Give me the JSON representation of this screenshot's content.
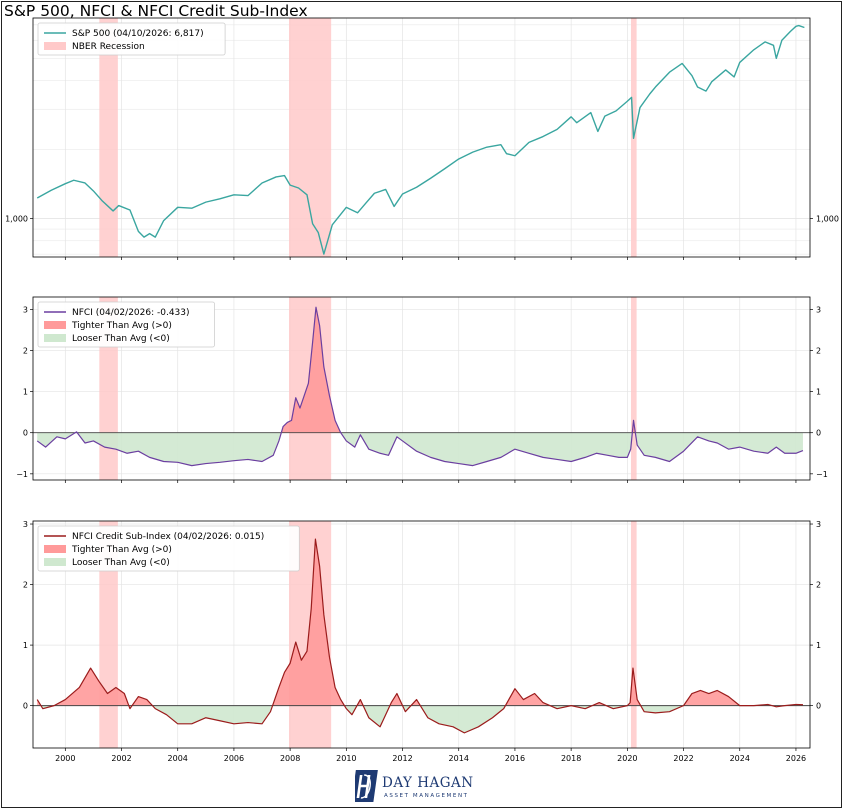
{
  "title": "S&P 500, NFCI & NFCI Credit Sub-Index",
  "logo": {
    "name": "DAY HAGAN",
    "sub": "ASSET MANAGEMENT",
    "mark": "dh-monogram"
  },
  "colors": {
    "sp500": "#3aa6a0",
    "nfci": "#6b3fa0",
    "credit": "#9b1c1c",
    "recession": "#ffc9c9",
    "tighter": "#ff9a9a",
    "looser": "#cfe8cf",
    "grid": "#e4e4e4",
    "zero": "#444444"
  },
  "x_axis": {
    "ticks": [
      "2000",
      "2002",
      "2004",
      "2006",
      "2008",
      "2010",
      "2012",
      "2014",
      "2016",
      "2018",
      "2020",
      "2022",
      "2024",
      "2026"
    ]
  },
  "recessions": [
    [
      2001.21,
      2001.87
    ],
    [
      2007.96,
      2009.46
    ],
    [
      2020.13,
      2020.33
    ]
  ],
  "chart_data": [
    {
      "type": "line",
      "name": "sp500-panel",
      "yscale": "log",
      "ylim": [
        680,
        7500
      ],
      "xlim": [
        1998.85,
        2026.5
      ],
      "yticks": [
        {
          "value": 1000,
          "label": "1,000"
        }
      ],
      "legend": {
        "placement": "top-left",
        "entries": [
          "S&P 500 (04/10/2026: 6,817)",
          "NBER Recession"
        ]
      },
      "series": [
        {
          "name": "S&P 500 (04/10/2026: 6,817)",
          "points": [
            [
              1999.0,
              1230
            ],
            [
              1999.5,
              1330
            ],
            [
              2000.0,
              1420
            ],
            [
              2000.3,
              1470
            ],
            [
              2000.7,
              1430
            ],
            [
              2001.0,
              1320
            ],
            [
              2001.3,
              1200
            ],
            [
              2001.7,
              1080
            ],
            [
              2001.9,
              1140
            ],
            [
              2002.3,
              1090
            ],
            [
              2002.6,
              880
            ],
            [
              2002.8,
              830
            ],
            [
              2003.0,
              860
            ],
            [
              2003.2,
              830
            ],
            [
              2003.5,
              980
            ],
            [
              2004.0,
              1120
            ],
            [
              2004.5,
              1110
            ],
            [
              2005.0,
              1180
            ],
            [
              2005.5,
              1220
            ],
            [
              2006.0,
              1270
            ],
            [
              2006.5,
              1260
            ],
            [
              2007.0,
              1430
            ],
            [
              2007.5,
              1520
            ],
            [
              2007.8,
              1540
            ],
            [
              2008.0,
              1400
            ],
            [
              2008.3,
              1360
            ],
            [
              2008.6,
              1270
            ],
            [
              2008.8,
              950
            ],
            [
              2009.0,
              870
            ],
            [
              2009.2,
              700
            ],
            [
              2009.5,
              940
            ],
            [
              2010.0,
              1120
            ],
            [
              2010.4,
              1060
            ],
            [
              2010.7,
              1170
            ],
            [
              2011.0,
              1290
            ],
            [
              2011.4,
              1340
            ],
            [
              2011.7,
              1130
            ],
            [
              2012.0,
              1280
            ],
            [
              2012.5,
              1370
            ],
            [
              2013.0,
              1500
            ],
            [
              2013.5,
              1650
            ],
            [
              2014.0,
              1820
            ],
            [
              2014.5,
              1950
            ],
            [
              2015.0,
              2050
            ],
            [
              2015.5,
              2100
            ],
            [
              2015.7,
              1920
            ],
            [
              2016.0,
              1880
            ],
            [
              2016.5,
              2150
            ],
            [
              2017.0,
              2280
            ],
            [
              2017.5,
              2450
            ],
            [
              2018.0,
              2780
            ],
            [
              2018.2,
              2620
            ],
            [
              2018.7,
              2900
            ],
            [
              2018.95,
              2400
            ],
            [
              2019.2,
              2800
            ],
            [
              2019.6,
              2950
            ],
            [
              2020.0,
              3250
            ],
            [
              2020.15,
              3380
            ],
            [
              2020.22,
              2240
            ],
            [
              2020.45,
              3050
            ],
            [
              2020.8,
              3500
            ],
            [
              2021.0,
              3750
            ],
            [
              2021.5,
              4350
            ],
            [
              2021.95,
              4750
            ],
            [
              2022.3,
              4200
            ],
            [
              2022.5,
              3750
            ],
            [
              2022.8,
              3600
            ],
            [
              2023.0,
              3950
            ],
            [
              2023.5,
              4450
            ],
            [
              2023.8,
              4150
            ],
            [
              2024.0,
              4800
            ],
            [
              2024.5,
              5450
            ],
            [
              2024.9,
              5900
            ],
            [
              2025.2,
              5700
            ],
            [
              2025.3,
              5000
            ],
            [
              2025.5,
              6000
            ],
            [
              2025.8,
              6550
            ],
            [
              2026.0,
              6900
            ],
            [
              2026.1,
              6950
            ],
            [
              2026.3,
              6817
            ]
          ]
        }
      ]
    },
    {
      "type": "area",
      "name": "nfci-panel",
      "ylim": [
        -1.15,
        3.3
      ],
      "xlim": [
        1998.85,
        2026.5
      ],
      "yticks": [
        {
          "value": -1,
          "label": "−1"
        },
        {
          "value": 0,
          "label": "0"
        },
        {
          "value": 1,
          "label": "1"
        },
        {
          "value": 2,
          "label": "2"
        },
        {
          "value": 3,
          "label": "3"
        }
      ],
      "legend": {
        "placement": "top-left",
        "entries": [
          "NFCI (04/02/2026: -0.433)",
          "Tighter Than Avg (>0)",
          "Looser Than Avg (<0)"
        ]
      },
      "series": [
        {
          "name": "NFCI (04/02/2026: -0.433)",
          "points": [
            [
              1999.0,
              -0.2
            ],
            [
              1999.3,
              -0.35
            ],
            [
              1999.7,
              -0.1
            ],
            [
              2000.0,
              -0.15
            ],
            [
              2000.4,
              0.02
            ],
            [
              2000.7,
              -0.25
            ],
            [
              2001.0,
              -0.2
            ],
            [
              2001.4,
              -0.35
            ],
            [
              2001.8,
              -0.4
            ],
            [
              2002.2,
              -0.5
            ],
            [
              2002.6,
              -0.45
            ],
            [
              2003.0,
              -0.6
            ],
            [
              2003.5,
              -0.7
            ],
            [
              2004.0,
              -0.72
            ],
            [
              2004.5,
              -0.8
            ],
            [
              2005.0,
              -0.75
            ],
            [
              2005.5,
              -0.72
            ],
            [
              2006.0,
              -0.68
            ],
            [
              2006.5,
              -0.65
            ],
            [
              2007.0,
              -0.7
            ],
            [
              2007.4,
              -0.55
            ],
            [
              2007.6,
              -0.2
            ],
            [
              2007.75,
              0.15
            ],
            [
              2007.9,
              0.25
            ],
            [
              2008.05,
              0.3
            ],
            [
              2008.2,
              0.85
            ],
            [
              2008.35,
              0.6
            ],
            [
              2008.5,
              0.9
            ],
            [
              2008.65,
              1.2
            ],
            [
              2008.8,
              2.2
            ],
            [
              2008.92,
              3.05
            ],
            [
              2009.05,
              2.6
            ],
            [
              2009.2,
              1.6
            ],
            [
              2009.4,
              0.9
            ],
            [
              2009.6,
              0.3
            ],
            [
              2009.8,
              0.0
            ],
            [
              2010.0,
              -0.2
            ],
            [
              2010.3,
              -0.35
            ],
            [
              2010.5,
              -0.05
            ],
            [
              2010.8,
              -0.4
            ],
            [
              2011.2,
              -0.5
            ],
            [
              2011.5,
              -0.55
            ],
            [
              2011.8,
              -0.1
            ],
            [
              2012.0,
              -0.2
            ],
            [
              2012.5,
              -0.45
            ],
            [
              2013.0,
              -0.6
            ],
            [
              2013.5,
              -0.7
            ],
            [
              2014.0,
              -0.75
            ],
            [
              2014.5,
              -0.8
            ],
            [
              2015.0,
              -0.7
            ],
            [
              2015.5,
              -0.6
            ],
            [
              2016.0,
              -0.4
            ],
            [
              2016.5,
              -0.5
            ],
            [
              2017.0,
              -0.6
            ],
            [
              2017.5,
              -0.65
            ],
            [
              2018.0,
              -0.7
            ],
            [
              2018.5,
              -0.6
            ],
            [
              2018.9,
              -0.5
            ],
            [
              2019.3,
              -0.55
            ],
            [
              2019.7,
              -0.6
            ],
            [
              2020.0,
              -0.6
            ],
            [
              2020.12,
              -0.4
            ],
            [
              2020.22,
              0.3
            ],
            [
              2020.35,
              -0.3
            ],
            [
              2020.6,
              -0.55
            ],
            [
              2021.0,
              -0.6
            ],
            [
              2021.5,
              -0.7
            ],
            [
              2022.0,
              -0.45
            ],
            [
              2022.5,
              -0.1
            ],
            [
              2022.9,
              -0.2
            ],
            [
              2023.2,
              -0.25
            ],
            [
              2023.6,
              -0.4
            ],
            [
              2024.0,
              -0.35
            ],
            [
              2024.5,
              -0.45
            ],
            [
              2025.0,
              -0.5
            ],
            [
              2025.3,
              -0.35
            ],
            [
              2025.6,
              -0.5
            ],
            [
              2026.0,
              -0.5
            ],
            [
              2026.25,
              -0.433
            ]
          ]
        }
      ]
    },
    {
      "type": "area",
      "name": "credit-panel",
      "ylim": [
        -0.7,
        3.05
      ],
      "xlim": [
        1998.85,
        2026.5
      ],
      "yticks": [
        {
          "value": 0,
          "label": "0"
        },
        {
          "value": 1,
          "label": "1"
        },
        {
          "value": 2,
          "label": "2"
        },
        {
          "value": 3,
          "label": "3"
        }
      ],
      "legend": {
        "placement": "top-left",
        "entries": [
          "NFCI Credit Sub-Index (04/02/2026: 0.015)",
          "Tighter Than Avg (>0)",
          "Looser Than Avg (<0)"
        ]
      },
      "series": [
        {
          "name": "NFCI Credit Sub-Index (04/02/2026: 0.015)",
          "points": [
            [
              1999.0,
              0.1
            ],
            [
              1999.2,
              -0.05
            ],
            [
              1999.6,
              0.0
            ],
            [
              2000.0,
              0.1
            ],
            [
              2000.5,
              0.3
            ],
            [
              2000.9,
              0.62
            ],
            [
              2001.2,
              0.4
            ],
            [
              2001.5,
              0.2
            ],
            [
              2001.8,
              0.3
            ],
            [
              2002.1,
              0.2
            ],
            [
              2002.3,
              -0.05
            ],
            [
              2002.6,
              0.15
            ],
            [
              2002.9,
              0.1
            ],
            [
              2003.2,
              -0.05
            ],
            [
              2003.6,
              -0.15
            ],
            [
              2004.0,
              -0.3
            ],
            [
              2004.5,
              -0.3
            ],
            [
              2005.0,
              -0.2
            ],
            [
              2005.5,
              -0.25
            ],
            [
              2006.0,
              -0.3
            ],
            [
              2006.5,
              -0.28
            ],
            [
              2007.0,
              -0.3
            ],
            [
              2007.3,
              -0.1
            ],
            [
              2007.6,
              0.3
            ],
            [
              2007.8,
              0.55
            ],
            [
              2008.0,
              0.7
            ],
            [
              2008.2,
              1.05
            ],
            [
              2008.4,
              0.75
            ],
            [
              2008.6,
              0.9
            ],
            [
              2008.75,
              1.6
            ],
            [
              2008.9,
              2.75
            ],
            [
              2009.05,
              2.3
            ],
            [
              2009.2,
              1.5
            ],
            [
              2009.4,
              0.8
            ],
            [
              2009.6,
              0.3
            ],
            [
              2009.8,
              0.1
            ],
            [
              2010.0,
              -0.05
            ],
            [
              2010.2,
              -0.15
            ],
            [
              2010.5,
              0.1
            ],
            [
              2010.8,
              -0.2
            ],
            [
              2011.2,
              -0.35
            ],
            [
              2011.6,
              0.05
            ],
            [
              2011.8,
              0.2
            ],
            [
              2012.1,
              -0.1
            ],
            [
              2012.5,
              0.1
            ],
            [
              2012.9,
              -0.2
            ],
            [
              2013.3,
              -0.3
            ],
            [
              2013.8,
              -0.35
            ],
            [
              2014.2,
              -0.45
            ],
            [
              2014.7,
              -0.35
            ],
            [
              2015.2,
              -0.2
            ],
            [
              2015.6,
              -0.05
            ],
            [
              2016.0,
              0.28
            ],
            [
              2016.3,
              0.1
            ],
            [
              2016.7,
              0.2
            ],
            [
              2017.0,
              0.05
            ],
            [
              2017.5,
              -0.05
            ],
            [
              2018.0,
              0.0
            ],
            [
              2018.5,
              -0.05
            ],
            [
              2019.0,
              0.05
            ],
            [
              2019.5,
              -0.05
            ],
            [
              2020.0,
              0.0
            ],
            [
              2020.1,
              0.05
            ],
            [
              2020.2,
              0.62
            ],
            [
              2020.35,
              0.1
            ],
            [
              2020.6,
              -0.1
            ],
            [
              2021.0,
              -0.12
            ],
            [
              2021.5,
              -0.1
            ],
            [
              2022.0,
              0.0
            ],
            [
              2022.3,
              0.2
            ],
            [
              2022.6,
              0.25
            ],
            [
              2022.9,
              0.2
            ],
            [
              2023.2,
              0.25
            ],
            [
              2023.6,
              0.15
            ],
            [
              2024.0,
              0.0
            ],
            [
              2024.5,
              0.0
            ],
            [
              2025.0,
              0.02
            ],
            [
              2025.3,
              -0.02
            ],
            [
              2025.6,
              0.0
            ],
            [
              2026.0,
              0.02
            ],
            [
              2026.25,
              0.015
            ]
          ]
        }
      ]
    }
  ]
}
